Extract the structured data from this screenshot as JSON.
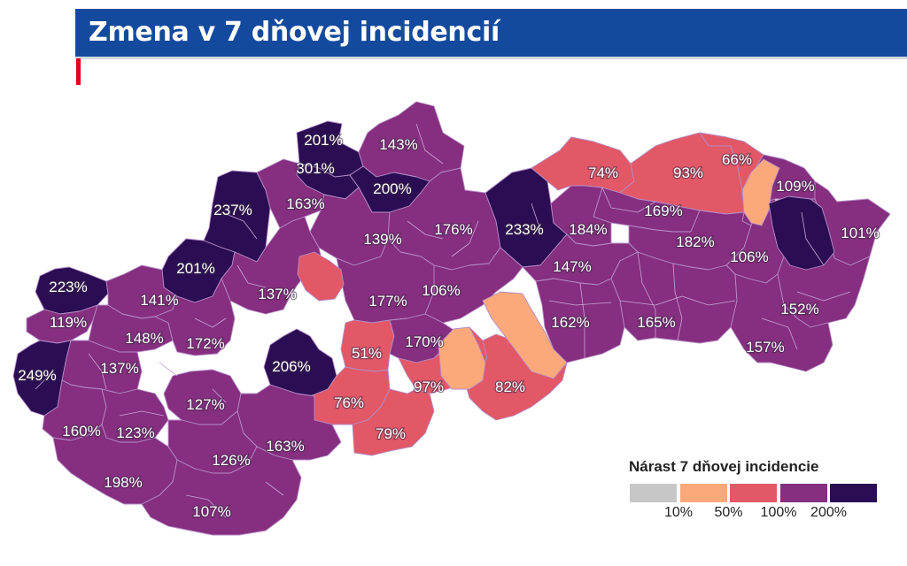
{
  "header": {
    "title": "Zmena v 7 dňovej incidencií"
  },
  "map": {
    "regions": [
      {
        "label": "201%",
        "bin": 4
      },
      {
        "label": "143%",
        "bin": 3
      },
      {
        "label": "301%",
        "bin": 4
      },
      {
        "label": "200%",
        "bin": 4
      },
      {
        "label": "237%",
        "bin": 4
      },
      {
        "label": "163%",
        "bin": 3
      },
      {
        "label": "139%",
        "bin": 3
      },
      {
        "label": "176%",
        "bin": 3
      },
      {
        "label": "233%",
        "bin": 4
      },
      {
        "label": "74%",
        "bin": 2
      },
      {
        "label": "93%",
        "bin": 2
      },
      {
        "label": "66%",
        "bin": 2
      },
      {
        "label": "109%",
        "bin": 3
      },
      {
        "label": "169%",
        "bin": 3
      },
      {
        "label": "184%",
        "bin": 3
      },
      {
        "label": "101%",
        "bin": 3
      },
      {
        "label": "182%",
        "bin": 3
      },
      {
        "label": "223%",
        "bin": 4
      },
      {
        "label": "201%",
        "bin": 4
      },
      {
        "label": "141%",
        "bin": 3
      },
      {
        "label": "137%",
        "bin": 3
      },
      {
        "label": "177%",
        "bin": 3
      },
      {
        "label": "106%",
        "bin": 3
      },
      {
        "label": "147%",
        "bin": 3
      },
      {
        "label": "106%",
        "bin": 3
      },
      {
        "label": "119%",
        "bin": 3
      },
      {
        "label": "148%",
        "bin": 3
      },
      {
        "label": "172%",
        "bin": 3
      },
      {
        "label": "162%",
        "bin": 3
      },
      {
        "label": "165%",
        "bin": 3
      },
      {
        "label": "152%",
        "bin": 3
      },
      {
        "label": "51%",
        "bin": 2
      },
      {
        "label": "170%",
        "bin": 3
      },
      {
        "label": "157%",
        "bin": 3
      },
      {
        "label": "249%",
        "bin": 4
      },
      {
        "label": "137%",
        "bin": 3
      },
      {
        "label": "206%",
        "bin": 4
      },
      {
        "label": "97%",
        "bin": 2
      },
      {
        "label": "82%",
        "bin": 2
      },
      {
        "label": "127%",
        "bin": 3
      },
      {
        "label": "76%",
        "bin": 2
      },
      {
        "label": "160%",
        "bin": 3
      },
      {
        "label": "123%",
        "bin": 3
      },
      {
        "label": "79%",
        "bin": 2
      },
      {
        "label": "163%",
        "bin": 3
      },
      {
        "label": "126%",
        "bin": 3
      },
      {
        "label": "198%",
        "bin": 3
      },
      {
        "label": "107%",
        "bin": 3
      },
      {
        "label": "",
        "bin": 2
      },
      {
        "label": "",
        "bin": 1
      },
      {
        "label": "",
        "bin": 1
      },
      {
        "label": "",
        "bin": 1
      },
      {
        "label": "",
        "bin": 4
      }
    ]
  },
  "legend": {
    "title": "Nárast 7 dňovej incidencie",
    "colors": [
      "#c7c7c7",
      "#fba97b",
      "#e25866",
      "#862e7f",
      "#2b0d53"
    ],
    "ticks": [
      "10%",
      "50%",
      "100%",
      "200%"
    ]
  }
}
